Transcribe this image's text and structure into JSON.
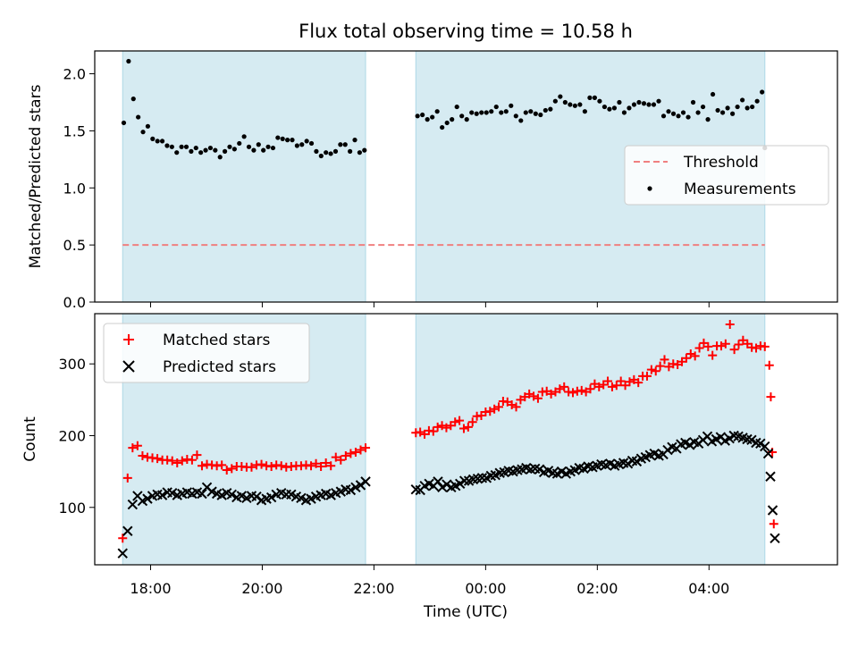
{
  "title": "Flux total observing time = 10.58 h",
  "xlabel": "Time (UTC)",
  "x_ticks": [
    "18:00",
    "20:00",
    "22:00",
    "00:00",
    "02:00",
    "04:00"
  ],
  "colors": {
    "shade": "#add8e6",
    "threshold": "#f08080",
    "measurements": "#000000",
    "matched": "#ff0000",
    "predicted": "#000000"
  },
  "chart_data": [
    {
      "type": "scatter",
      "ylabel": "Matched/Predicted stars",
      "ylim": [
        0.0,
        2.2
      ],
      "y_ticks": [
        "0.0",
        "0.5",
        "1.0",
        "1.5",
        "2.0"
      ],
      "x_unit": "hours since 00:00 UTC on the first night (values > 24 = next day)",
      "xlim": [
        17.0,
        30.3
      ],
      "observing_windows": [
        [
          17.5,
          21.85
        ],
        [
          22.75,
          29.0
        ]
      ],
      "legend": {
        "position": "center-right",
        "entries": [
          "Threshold",
          "Measurements"
        ]
      },
      "series": [
        {
          "name": "Threshold",
          "kind": "line",
          "y": 0.5,
          "x_range": [
            17.5,
            29.0
          ]
        },
        {
          "name": "Measurements",
          "kind": "points",
          "segments": [
            {
              "x_start": 17.52,
              "x_end": 21.83,
              "y": [
                1.57,
                2.11,
                1.78,
                1.62,
                1.49,
                1.54,
                1.43,
                1.41,
                1.41,
                1.37,
                1.36,
                1.31,
                1.36,
                1.36,
                1.32,
                1.35,
                1.31,
                1.33,
                1.35,
                1.33,
                1.27,
                1.32,
                1.36,
                1.34,
                1.39,
                1.45,
                1.36,
                1.33,
                1.38,
                1.33,
                1.36,
                1.35,
                1.44,
                1.43,
                1.42,
                1.42,
                1.37,
                1.38,
                1.41,
                1.39,
                1.32,
                1.28,
                1.31,
                1.3,
                1.32,
                1.38,
                1.38,
                1.32,
                1.42,
                1.31,
                1.33
              ]
            },
            {
              "x_start": 22.78,
              "x_end": 28.95,
              "y": [
                1.63,
                1.64,
                1.6,
                1.62,
                1.67,
                1.53,
                1.57,
                1.6,
                1.71,
                1.63,
                1.6,
                1.66,
                1.65,
                1.66,
                1.66,
                1.67,
                1.71,
                1.66,
                1.67,
                1.72,
                1.63,
                1.59,
                1.66,
                1.67,
                1.65,
                1.64,
                1.68,
                1.69,
                1.76,
                1.8,
                1.75,
                1.73,
                1.72,
                1.73,
                1.67,
                1.79,
                1.79,
                1.76,
                1.71,
                1.69,
                1.7,
                1.75,
                1.66,
                1.7,
                1.73,
                1.75,
                1.74,
                1.73,
                1.73,
                1.76,
                1.63,
                1.67,
                1.65,
                1.63,
                1.66,
                1.62,
                1.75,
                1.66,
                1.71,
                1.6,
                1.82,
                1.68,
                1.66,
                1.7,
                1.65,
                1.71,
                1.77,
                1.7,
                1.71,
                1.76,
                1.84
              ]
            },
            {
              "x_start": 29.0,
              "x_end": 29.0,
              "y": [
                1.35
              ]
            }
          ]
        }
      ]
    },
    {
      "type": "scatter",
      "ylabel": "Count",
      "ylim": [
        20,
        370
      ],
      "y_ticks": [
        "100",
        "200",
        "300"
      ],
      "xlim": [
        17.0,
        30.3
      ],
      "observing_windows": [
        [
          17.5,
          21.85
        ],
        [
          22.75,
          29.0
        ]
      ],
      "legend": {
        "position": "upper-left",
        "entries": [
          "Matched stars",
          "Predicted stars"
        ]
      },
      "series": [
        {
          "name": "Matched stars",
          "marker": "plus",
          "segments": [
            {
              "x_start": 17.5,
              "x_end": 21.85,
              "y": [
                57,
                141,
                183,
                186,
                172,
                170,
                169,
                168,
                166,
                166,
                165,
                162,
                165,
                167,
                166,
                173,
                158,
                160,
                159,
                158,
                159,
                152,
                154,
                157,
                157,
                156,
                156,
                159,
                160,
                158,
                157,
                159,
                158,
                156,
                157,
                158,
                158,
                159,
                158,
                161,
                157,
                162,
                158,
                170,
                166,
                172,
                175,
                177,
                180,
                183
              ]
            },
            {
              "x_start": 22.75,
              "x_end": 29.0,
              "y": [
                204,
                205,
                202,
                207,
                206,
                212,
                214,
                211,
                214,
                219,
                221,
                210,
                212,
                219,
                227,
                228,
                233,
                234,
                237,
                240,
                248,
                247,
                243,
                240,
                250,
                254,
                258,
                255,
                252,
                261,
                262,
                258,
                261,
                265,
                268,
                261,
                260,
                262,
                263,
                261,
                265,
                272,
                268,
                271,
                276,
                268,
                270,
                276,
                270,
                275,
                278,
                274,
                283,
                283,
                292,
                290,
                297,
                306,
                296,
                300,
                299,
                303,
                308,
                314,
                311,
                322,
                329,
                324,
                312,
                325,
                325,
                328,
                355,
                320,
                327,
                333,
                328,
                323,
                322,
                325,
                324
              ]
            },
            {
              "x_start": 29.08,
              "x_end": 29.16,
              "y": [
                298,
                254,
                177,
                77
              ]
            }
          ]
        },
        {
          "name": "Predicted stars",
          "marker": "cross",
          "segments": [
            {
              "x_start": 17.5,
              "x_end": 21.85,
              "y": [
                36,
                67,
                104,
                116,
                109,
                112,
                116,
                118,
                117,
                121,
                120,
                117,
                119,
                121,
                119,
                121,
                119,
                128,
                122,
                119,
                117,
                120,
                118,
                114,
                116,
                113,
                116,
                115,
                110,
                112,
                114,
                118,
                120,
                118,
                118,
                115,
                113,
                110,
                112,
                115,
                117,
                119,
                117,
                120,
                122,
                125,
                124,
                128,
                131,
                136
              ]
            },
            {
              "x_start": 22.75,
              "x_end": 29.0,
              "y": [
                125,
                124,
                130,
                133,
                130,
                136,
                128,
                132,
                128,
                130,
                133,
                137,
                137,
                139,
                140,
                141,
                141,
                144,
                145,
                148,
                149,
                151,
                150,
                152,
                153,
                155,
                153,
                154,
                153,
                149,
                151,
                148,
                147,
                150,
                147,
                150,
                152,
                155,
                154,
                157,
                156,
                158,
                160,
                159,
                161,
                158,
                160,
                162,
                161,
                165,
                164,
                168,
                170,
                173,
                175,
                172,
                174,
                180,
                184,
                182,
                188,
                190,
                187,
                191,
                189,
                194,
                199,
                192,
                195,
                198,
                193,
                196,
                200,
                199,
                197,
                195,
                194,
                190,
                189,
                185
              ]
            },
            {
              "x_start": 29.06,
              "x_end": 29.18,
              "y": [
                175,
                143,
                96,
                57
              ]
            }
          ]
        }
      ]
    }
  ]
}
